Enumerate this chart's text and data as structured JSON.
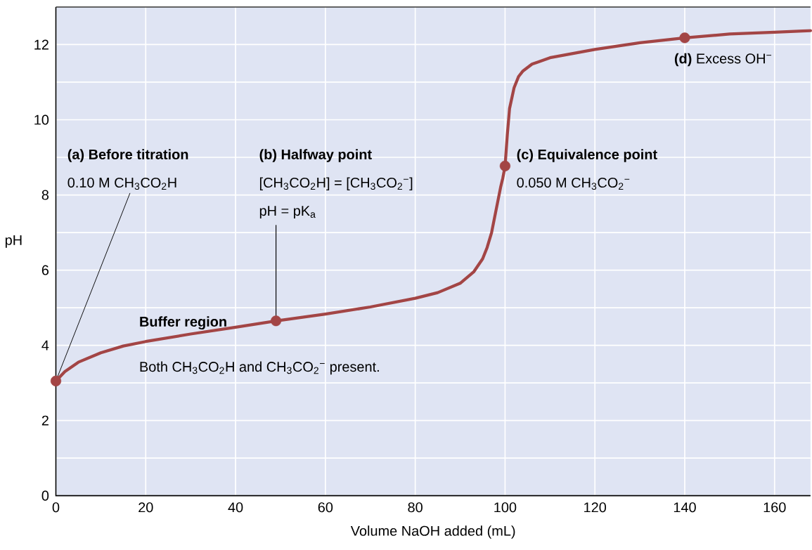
{
  "chart_data": {
    "type": "line",
    "xlabel": "Volume NaOH added (mL)",
    "ylabel": "pH",
    "xlim": [
      0,
      168
    ],
    "ylim": [
      0,
      13
    ],
    "xticks": [
      0,
      20,
      40,
      60,
      80,
      100,
      120,
      140,
      160
    ],
    "yticks": [
      0,
      2,
      4,
      6,
      8,
      10,
      12
    ],
    "grid": true,
    "series": [
      {
        "color": "#a34545",
        "x": [
          0,
          2,
          5,
          10,
          15,
          20,
          30,
          40,
          49,
          60,
          70,
          80,
          85,
          90,
          93,
          95,
          96,
          97,
          98,
          99,
          99.5,
          100,
          100.5,
          101,
          102,
          103,
          104,
          106,
          110,
          120,
          130,
          140,
          150,
          160,
          168
        ],
        "values": [
          3.05,
          3.3,
          3.55,
          3.8,
          3.98,
          4.1,
          4.3,
          4.48,
          4.65,
          4.83,
          5.02,
          5.25,
          5.4,
          5.65,
          5.95,
          6.3,
          6.6,
          7.0,
          7.6,
          8.2,
          8.45,
          8.77,
          9.6,
          10.3,
          10.85,
          11.15,
          11.3,
          11.48,
          11.65,
          11.87,
          12.05,
          12.18,
          12.28,
          12.33,
          12.37
        ]
      },
      {
        "type": "scatter",
        "marker": "circle",
        "color": "#a34545",
        "x": [
          0,
          49,
          100,
          140
        ],
        "values": [
          3.05,
          4.65,
          8.77,
          12.18
        ]
      }
    ],
    "annotations": [
      "(a) Before titration",
      {
        "text": "0.10 M CH$_{3}$CO$_{2}$H",
        "x": 0,
        "y": 3.05
      },
      "(b) Halfway point",
      "[CH$_{3}$CO$_{2}$H] = [CH$_{3}$CO$_{2}$$^{−}$]",
      {
        "text": "pH = pK$_{a}$",
        "x": 49,
        "y": 4.65
      },
      {
        "text": "(c) Equivalence point",
        "x": 100,
        "y": 8.77
      },
      "0.050 M CH$_{3}$CO$_{2}$$^{−}$",
      {
        "text": "**(d)** Excess OH$^{−}$",
        "x": 140,
        "y": 12.18
      },
      "Buffer region",
      "Both CH$_{3}$CO$_{2}$H and CH$_{3}$CO$_{2}$$^{−}$ present."
    ]
  }
}
